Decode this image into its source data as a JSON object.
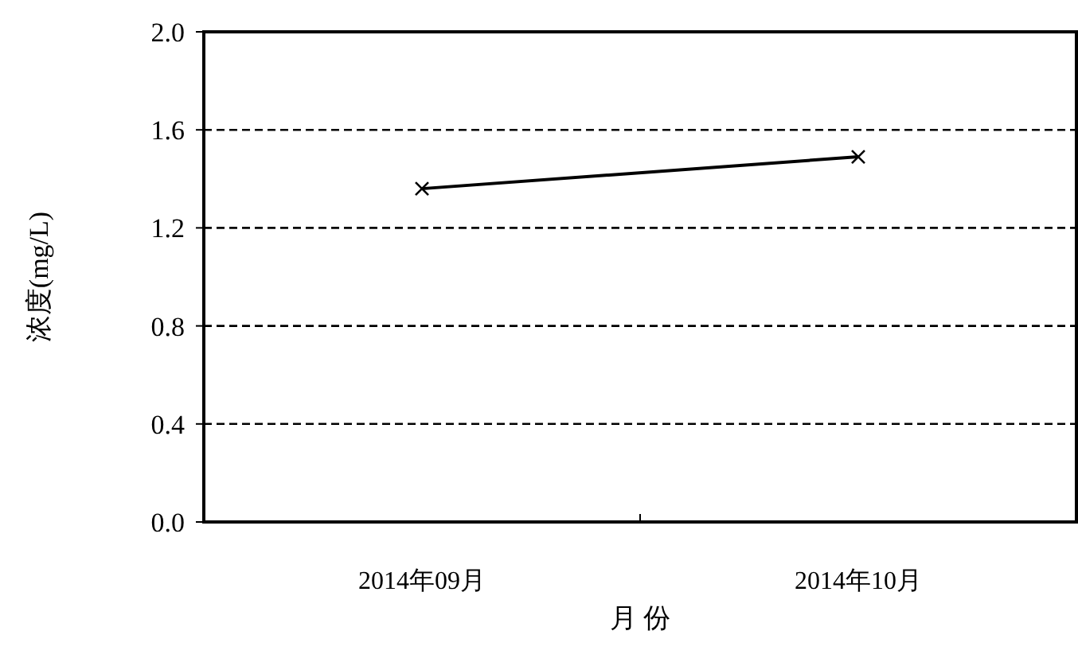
{
  "chart_data": {
    "type": "line",
    "xlabel": "月 份",
    "ylabel": "浓度(mg/L)",
    "categories": [
      "2014年09月",
      "2014年10月"
    ],
    "series": [
      {
        "color": "#000000",
        "values": [
          1.36,
          1.49
        ]
      }
    ],
    "ylim": [
      0,
      2
    ],
    "yticks": [
      {
        "value": 0,
        "label": "0.0"
      },
      {
        "value": 0.4,
        "label": "0.4"
      },
      {
        "value": 0.8,
        "label": "0.8"
      },
      {
        "value": 1.2,
        "label": "1.2"
      },
      {
        "value": 1.6,
        "label": "1.6"
      },
      {
        "value": 2,
        "label": "2.0"
      }
    ],
    "grid": "y",
    "marker": "cross",
    "line_style": "solid"
  }
}
